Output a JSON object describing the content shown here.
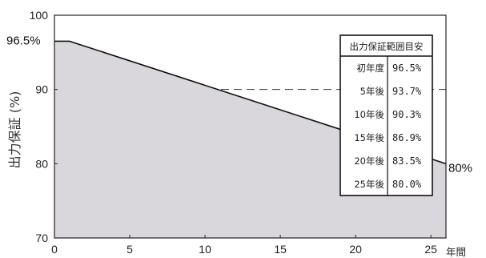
{
  "chart_data": {
    "type": "area",
    "ylabel": "出力保証 (%)",
    "xunit": "年間",
    "xlim": [
      0,
      26
    ],
    "ylim": [
      70,
      100
    ],
    "xticks": [
      0,
      5,
      10,
      15,
      20,
      25
    ],
    "yticks": [
      70,
      80,
      90,
      100
    ],
    "gridlines_y": [
      80,
      90
    ],
    "series": [
      {
        "x": [
          0,
          1,
          26
        ],
        "y": [
          96.5,
          96.5,
          80.0
        ]
      }
    ],
    "annotations": [
      {
        "text": "96.5%",
        "at": [
          0,
          96.5
        ]
      },
      {
        "text": "80%",
        "at": [
          26,
          80.0
        ]
      }
    ],
    "table": {
      "title": "出力保証範囲目安",
      "rows": [
        {
          "label": "初年度",
          "value": "96.5%"
        },
        {
          "label": "5年後",
          "value": "93.7%"
        },
        {
          "label": "10年後",
          "value": "90.3%"
        },
        {
          "label": "15年後",
          "value": "86.9%"
        },
        {
          "label": "20年後",
          "value": "83.5%"
        },
        {
          "label": "25年後",
          "value": "80.0%"
        }
      ]
    }
  }
}
